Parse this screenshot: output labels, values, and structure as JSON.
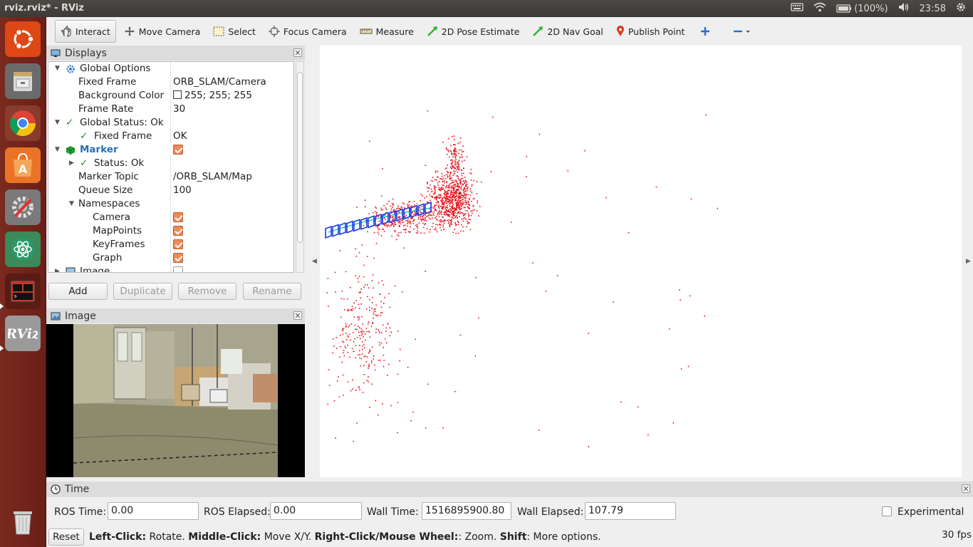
{
  "window": {
    "title": "rviz.rviz* - RViz"
  },
  "tray": {
    "battery": "(100%)",
    "clock": "23:58"
  },
  "launcher": {
    "items": [
      "ubuntu",
      "files",
      "chrome",
      "software-center",
      "system-settings",
      "atom",
      "terminal",
      "rviz",
      "trash"
    ]
  },
  "toolbar": {
    "tools": [
      {
        "label": "Interact",
        "icon": "hand-icon"
      },
      {
        "label": "Move Camera",
        "icon": "move-icon"
      },
      {
        "label": "Select",
        "icon": "select-icon"
      },
      {
        "label": "Focus Camera",
        "icon": "focus-icon"
      },
      {
        "label": "Measure",
        "icon": "ruler-icon"
      },
      {
        "label": "2D Pose Estimate",
        "icon": "pose-arrow-icon"
      },
      {
        "label": "2D Nav Goal",
        "icon": "goal-arrow-icon"
      },
      {
        "label": "Publish Point",
        "icon": "pin-icon"
      }
    ]
  },
  "displays": {
    "title": "Displays",
    "rows": [
      {
        "key": "Global Options",
        "value": ""
      },
      {
        "key": "Fixed Frame",
        "value": "ORB_SLAM/Camera"
      },
      {
        "key": "Background Color",
        "value": "255; 255; 255"
      },
      {
        "key": "Frame Rate",
        "value": "30"
      },
      {
        "key": "Global Status: Ok",
        "value": ""
      },
      {
        "key": "Fixed Frame",
        "value": "OK"
      },
      {
        "key": "Marker",
        "value": ""
      },
      {
        "key": "Status: Ok",
        "value": ""
      },
      {
        "key": "Marker Topic",
        "value": "/ORB_SLAM/Map"
      },
      {
        "key": "Queue Size",
        "value": "100"
      },
      {
        "key": "Namespaces",
        "value": ""
      },
      {
        "key": "Camera",
        "value": ""
      },
      {
        "key": "MapPoints",
        "value": ""
      },
      {
        "key": "KeyFrames",
        "value": ""
      },
      {
        "key": "Graph",
        "value": ""
      },
      {
        "key": "Image",
        "value": ""
      }
    ],
    "buttons": {
      "add": "Add",
      "duplicate": "Duplicate",
      "remove": "Remove",
      "rename": "Rename"
    }
  },
  "image_panel": {
    "title": "Image"
  },
  "time": {
    "title": "Time",
    "ros_time_label": "ROS Time:",
    "ros_time": "0.00",
    "ros_elapsed_label": "ROS Elapsed:",
    "ros_elapsed": "0.00",
    "wall_time_label": "Wall Time:",
    "wall_time": "1516895900.80",
    "wall_elapsed_label": "Wall Elapsed:",
    "wall_elapsed": "107.79",
    "experimental_label": "Experimental"
  },
  "status": {
    "reset": "Reset",
    "b1": "Left-Click:",
    "t1": " Rotate. ",
    "b2": "Middle-Click:",
    "t2": " Move X/Y. ",
    "b3": "Right-Click/Mouse Wheel:",
    "t3": ": Zoom. ",
    "b4": "Shift",
    "t4": ": More options.",
    "fps": "30 fps"
  },
  "colors": {
    "points": "#e8101a",
    "trajectory": "#1a3ee0",
    "graph": "#2ad0d6",
    "accent": "#ee8a5a"
  }
}
